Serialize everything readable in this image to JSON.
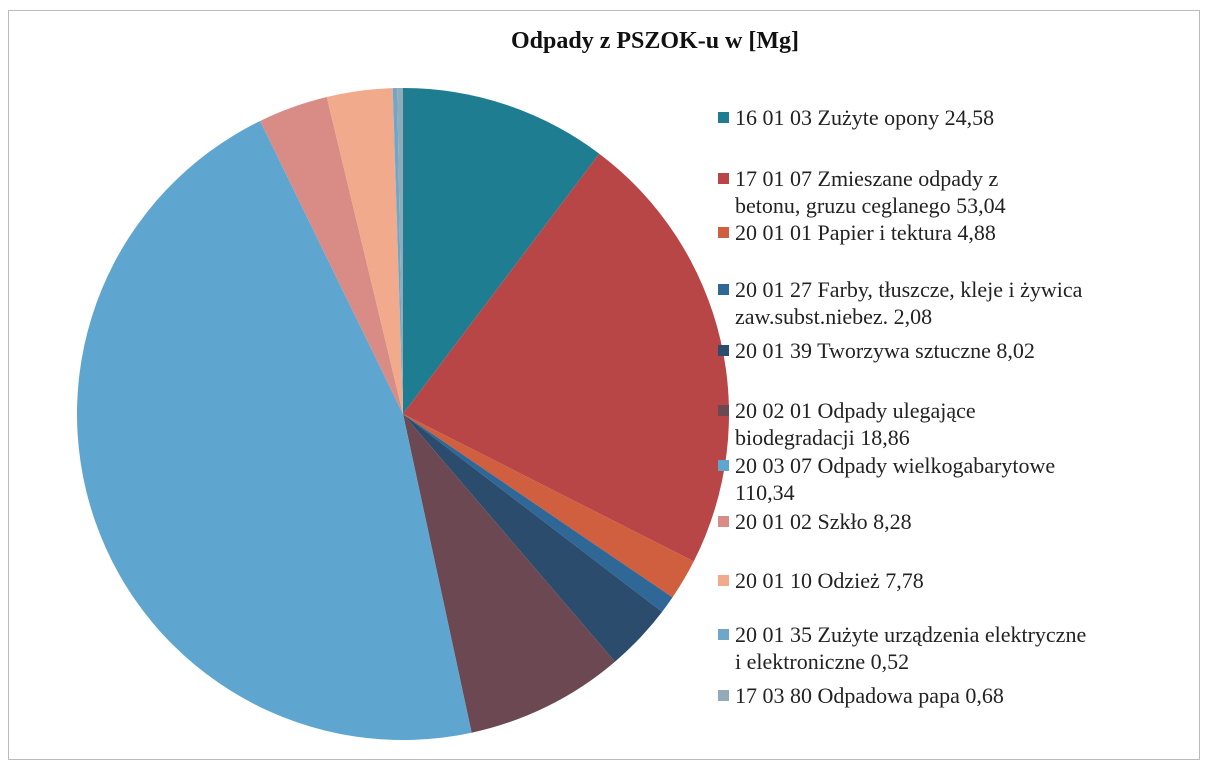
{
  "chart_data": {
    "type": "pie",
    "title": "Odpady z PSZOK-u w [Mg]",
    "categories": [
      "16 01 03 Zużyte opony",
      "17 01 07 Zmieszane odpady z betonu, gruzu ceglanego",
      "20 01 01 Papier i tektura",
      "20 01 27 Farby, tłuszcze, kleje i żywica zaw.subst.niebez.",
      "20 01 39 Tworzywa sztuczne",
      "20 02 01 Odpady ulegające biodegradacji",
      "20 03 07 Odpady wielkogabarytowe",
      "20 01 02 Szkło",
      "20 01 10 Odzież",
      "20 01 35 Zużyte urządzenia elektryczne i elektroniczne",
      "17 03 80 Odpadowa papa"
    ],
    "values": [
      24.58,
      53.04,
      4.88,
      2.08,
      8.02,
      18.86,
      110.34,
      8.28,
      7.78,
      0.52,
      0.68
    ],
    "value_labels": [
      "24,58",
      "53,04",
      "4,88",
      "2,08",
      "8,02",
      "18,86",
      "110,34",
      "8,28",
      "7,78",
      "0,52",
      "0,68"
    ],
    "colors": [
      "#1f7d91",
      "#b84646",
      "#cf5f3e",
      "#2f6797",
      "#2c4c6e",
      "#6b4852",
      "#5ea6cf",
      "#d98c85",
      "#f2aa8c",
      "#6ea7c7",
      "#93aab9"
    ]
  }
}
